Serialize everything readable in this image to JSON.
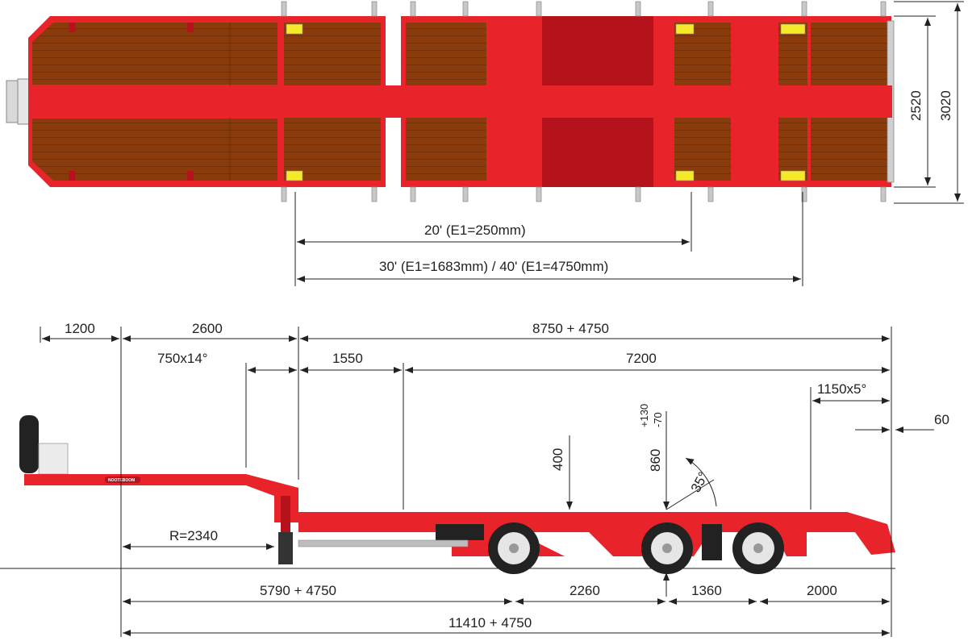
{
  "top_view": {
    "dim_width_inner": "2520",
    "dim_width_outer": "3020",
    "dim_20ft": "20' (E1=250mm)",
    "dim_30_40ft": "30' (E1=1683mm) / 40' (E1=4750mm)"
  },
  "side_view": {
    "dim_1200": "1200",
    "dim_2600": "2600",
    "dim_8750": "8750 + 4750",
    "dim_750x14": "750x14°",
    "dim_1550": "1550",
    "dim_7200": "7200",
    "dim_1150x5": "1150x5°",
    "dim_60": "60",
    "dim_400": "400",
    "dim_860": "860",
    "dim_tol_plus": "+130",
    "dim_tol_minus": "-70",
    "dim_angle": "35°",
    "dim_radius": "R=2340",
    "dim_5790": "5790 + 4750",
    "dim_2260": "2260",
    "dim_1360": "1360",
    "dim_2000": "2000",
    "dim_11410": "11410 + 4750",
    "brand_logo": "NOOTEBOOM"
  },
  "colors": {
    "frame_red": "#e8232a",
    "dark_red": "#b5121b",
    "deck_brown": "#8a3b0c",
    "twistlock_yellow": "#f4ea2a",
    "dim_line": "#222222"
  }
}
